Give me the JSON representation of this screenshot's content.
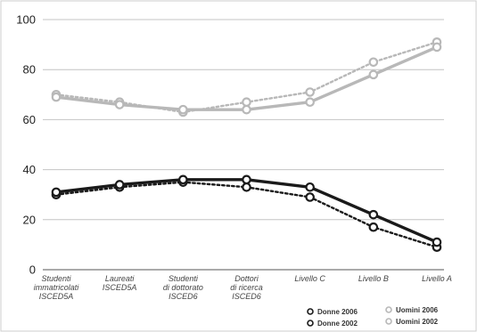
{
  "chart_data": {
    "type": "line",
    "title": "",
    "xlabel": "",
    "ylabel": "",
    "ylim": [
      0,
      100
    ],
    "yticks": [
      0,
      20,
      40,
      60,
      80,
      100
    ],
    "grid": true,
    "legend_position": "bottom-right",
    "categories": [
      [
        "Studenti",
        "immatricolati",
        "ISCED5A"
      ],
      [
        "Laureati",
        "ISCED5A"
      ],
      [
        "Studenti",
        "di dottorato",
        "ISCED6"
      ],
      [
        "Dottori",
        "di ricerca",
        "ISCED6"
      ],
      [
        "Livello C"
      ],
      [
        "Livello B"
      ],
      [
        "Livello A"
      ]
    ],
    "series": [
      {
        "name": "Donne 2006",
        "values": [
          31,
          34,
          36,
          36,
          33,
          22,
          11
        ],
        "color": "#1a1a1a",
        "dash": "solid",
        "marker_fill": "#ffffff"
      },
      {
        "name": "Donne 2002",
        "values": [
          30,
          33,
          35,
          33,
          29,
          17,
          9
        ],
        "color": "#1a1a1a",
        "dash": "dotted",
        "marker_fill": "#ffffff"
      },
      {
        "name": "Uomini 2006",
        "values": [
          69,
          66,
          64,
          64,
          67,
          78,
          89
        ],
        "color": "#b8b8b8",
        "dash": "solid",
        "marker_fill": "#ffffff"
      },
      {
        "name": "Uomini 2002",
        "values": [
          70,
          67,
          63,
          67,
          71,
          83,
          91
        ],
        "color": "#b8b8b8",
        "dash": "dotted",
        "marker_fill": "#ffffff"
      }
    ]
  }
}
